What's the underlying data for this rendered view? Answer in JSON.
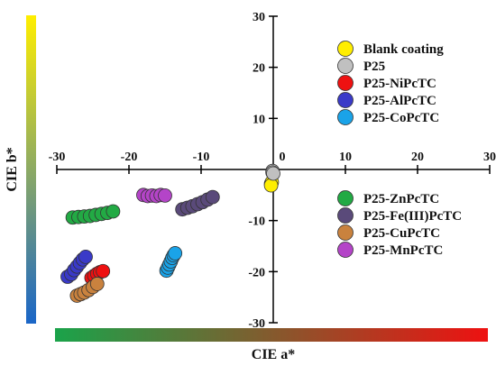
{
  "chart_data": {
    "type": "scatter",
    "xlabel": "CIE a*",
    "ylabel": "CIE b*",
    "xlim": [
      -30,
      30
    ],
    "ylim": [
      -30,
      30
    ],
    "x_ticks": [
      -30,
      -20,
      -10,
      0,
      10,
      20,
      30
    ],
    "y_ticks": [
      30,
      20,
      10,
      -10,
      -20,
      -30
    ],
    "origin_label": "0",
    "grid": false,
    "legend_placement": "right",
    "series": [
      {
        "name": "Blank coating",
        "color": "#ffee00",
        "points": [
          [
            -0.3,
            -2.8
          ],
          [
            -0.2,
            -2.5
          ],
          [
            -0.3,
            -3.1
          ]
        ]
      },
      {
        "name": "P25",
        "color": "#c0c0c0",
        "points": [
          [
            -0.1,
            -0.3
          ],
          [
            -0.1,
            -0.6
          ],
          [
            0.0,
            -0.8
          ]
        ]
      },
      {
        "name": "P25-NiPcTC",
        "color": "#ee1111",
        "points": [
          [
            -25.2,
            -21.2
          ],
          [
            -24.8,
            -20.8
          ],
          [
            -24.4,
            -20.4
          ],
          [
            -24.0,
            -20.1
          ],
          [
            -23.6,
            -19.9
          ]
        ]
      },
      {
        "name": "P25-AlPcTC",
        "color": "#3a3ac8",
        "points": [
          [
            -28.5,
            -21.0
          ],
          [
            -28.0,
            -20.5
          ],
          [
            -27.6,
            -19.7
          ],
          [
            -27.2,
            -19.0
          ],
          [
            -26.8,
            -18.3
          ],
          [
            -26.4,
            -17.6
          ],
          [
            -26.0,
            -17.1
          ]
        ]
      },
      {
        "name": "P25-CoPcTC",
        "color": "#1aa3e8",
        "points": [
          [
            -14.8,
            -19.8
          ],
          [
            -14.6,
            -19.2
          ],
          [
            -14.4,
            -18.6
          ],
          [
            -14.2,
            -18.0
          ],
          [
            -14.0,
            -17.3
          ],
          [
            -13.8,
            -16.8
          ],
          [
            -13.6,
            -16.4
          ]
        ]
      },
      {
        "name": "P25-ZnPcTC",
        "color": "#22aa44",
        "points": [
          [
            -27.8,
            -9.4
          ],
          [
            -27.0,
            -9.3
          ],
          [
            -26.2,
            -9.2
          ],
          [
            -25.4,
            -9.1
          ],
          [
            -24.6,
            -8.9
          ],
          [
            -23.8,
            -8.7
          ],
          [
            -23.0,
            -8.5
          ],
          [
            -22.2,
            -8.2
          ]
        ]
      },
      {
        "name": "P25-Fe(III)PcTC",
        "color": "#5a4a7a",
        "points": [
          [
            -12.6,
            -7.8
          ],
          [
            -11.9,
            -7.5
          ],
          [
            -11.2,
            -7.2
          ],
          [
            -10.5,
            -6.8
          ],
          [
            -9.8,
            -6.4
          ],
          [
            -9.1,
            -5.9
          ],
          [
            -8.4,
            -5.4
          ]
        ]
      },
      {
        "name": "P25-CuPcTC",
        "color": "#c9823e",
        "points": [
          [
            -27.2,
            -24.7
          ],
          [
            -26.7,
            -24.4
          ],
          [
            -26.2,
            -24.1
          ],
          [
            -25.6,
            -23.6
          ],
          [
            -25.0,
            -23.0
          ],
          [
            -24.4,
            -22.4
          ]
        ]
      },
      {
        "name": "P25-MnPcTC",
        "color": "#b444c8",
        "points": [
          [
            -18.0,
            -5.0
          ],
          [
            -17.4,
            -5.2
          ],
          [
            -16.8,
            -5.1
          ],
          [
            -16.2,
            -5.2
          ],
          [
            -15.6,
            -5.0
          ],
          [
            -15.0,
            -5.1
          ]
        ]
      }
    ],
    "color_bars": {
      "vertical": {
        "top": "#ffee00",
        "bottom": "#1a66c8"
      },
      "horizontal": {
        "left": "#1aa34a",
        "right": "#ee1111"
      }
    }
  }
}
